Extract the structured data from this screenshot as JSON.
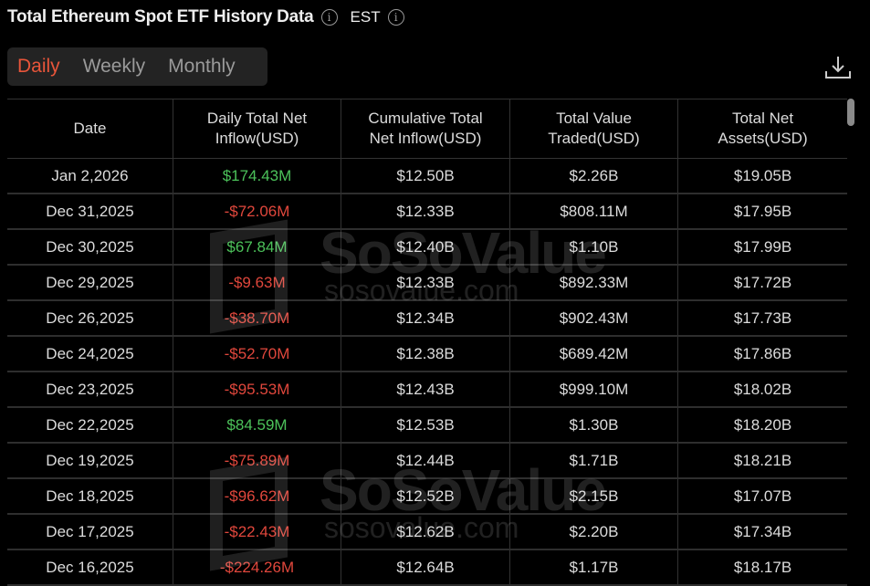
{
  "header": {
    "title": "Total Ethereum Spot ETF History Data",
    "timezone": "EST",
    "info_icon": "info-icon"
  },
  "tabs": [
    {
      "label": "Daily",
      "active": true
    },
    {
      "label": "Weekly",
      "active": false
    },
    {
      "label": "Monthly",
      "active": false
    }
  ],
  "colors": {
    "accent": "#e8553a",
    "positive": "#4cc25a",
    "negative": "#e0473c"
  },
  "watermark": {
    "brand": "SoSoValue",
    "url": "sosovalue.com"
  },
  "table": {
    "columns": [
      "Date",
      "Daily Total Net Inflow(USD)",
      "Cumulative Total Net Inflow(USD)",
      "Total Value Traded(USD)",
      "Total Net Assets(USD)"
    ],
    "rows": [
      [
        "Jan 2,2026",
        "$174.43M",
        "$12.50B",
        "$2.26B",
        "$19.05B"
      ],
      [
        "Dec 31,2025",
        "-$72.06M",
        "$12.33B",
        "$808.11M",
        "$17.95B"
      ],
      [
        "Dec 30,2025",
        "$67.84M",
        "$12.40B",
        "$1.10B",
        "$17.99B"
      ],
      [
        "Dec 29,2025",
        "-$9.63M",
        "$12.33B",
        "$892.33M",
        "$17.72B"
      ],
      [
        "Dec 26,2025",
        "-$38.70M",
        "$12.34B",
        "$902.43M",
        "$17.73B"
      ],
      [
        "Dec 24,2025",
        "-$52.70M",
        "$12.38B",
        "$689.42M",
        "$17.86B"
      ],
      [
        "Dec 23,2025",
        "-$95.53M",
        "$12.43B",
        "$999.10M",
        "$18.02B"
      ],
      [
        "Dec 22,2025",
        "$84.59M",
        "$12.53B",
        "$1.30B",
        "$18.20B"
      ],
      [
        "Dec 19,2025",
        "-$75.89M",
        "$12.44B",
        "$1.71B",
        "$18.21B"
      ],
      [
        "Dec 18,2025",
        "-$96.62M",
        "$12.52B",
        "$2.15B",
        "$17.07B"
      ],
      [
        "Dec 17,2025",
        "-$22.43M",
        "$12.62B",
        "$2.20B",
        "$17.34B"
      ],
      [
        "Dec 16,2025",
        "-$224.26M",
        "$12.64B",
        "$1.17B",
        "$18.17B"
      ]
    ]
  }
}
